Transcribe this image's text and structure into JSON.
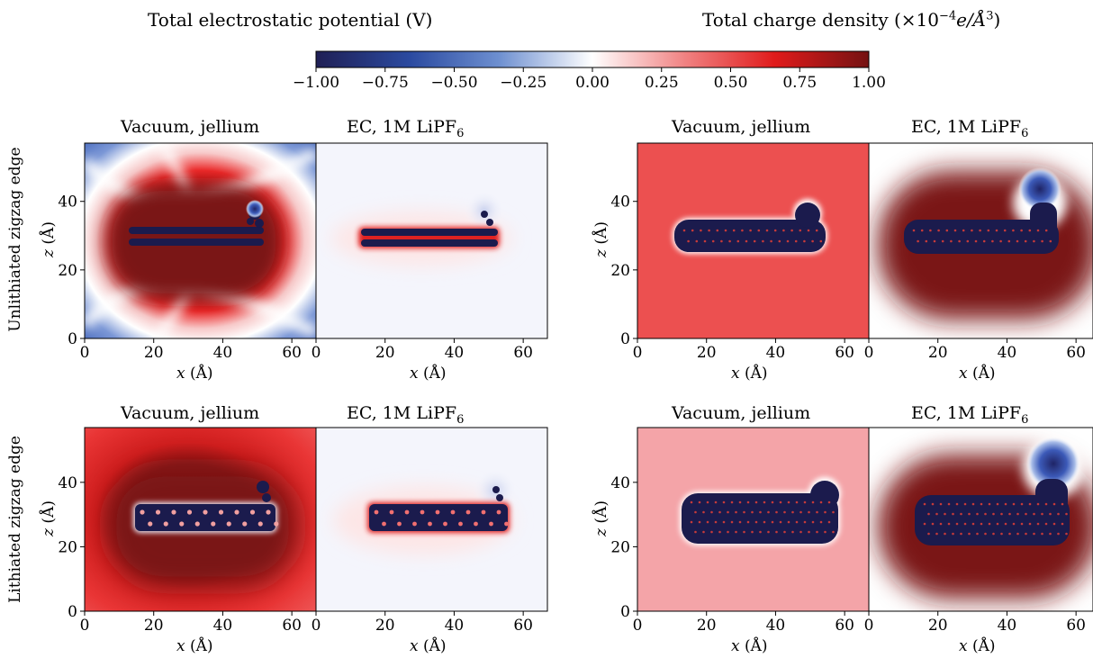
{
  "header": {
    "left_title": "Total electrostatic potential (V)",
    "right_title_prefix": "Total charge density (×10",
    "right_title_exp": "−4",
    "right_title_unit": "e/Å",
    "right_title_pow": "3",
    "right_title_suffix": ")"
  },
  "colorbar": {
    "ticks": [
      "−1.00",
      "−0.75",
      "−0.50",
      "−0.25",
      "0.00",
      "0.25",
      "0.50",
      "0.75",
      "1.00"
    ],
    "colors": [
      "#23235e",
      "#2f4ca8",
      "#7fa0d8",
      "#ffffff",
      "#f07a7a",
      "#e01d1d",
      "#741212"
    ]
  },
  "row_labels": [
    "Unlithiated zigzag edge",
    "Lithiated zigzag edge"
  ],
  "panel_titles": {
    "vacuum": "Vacuum, jellium",
    "ec_prefix": "EC, 1M LiPF",
    "ec_sub": "6"
  },
  "axes": {
    "xlabel_var": "x",
    "xlabel_unit": "(Å)",
    "ylabel_var": "z",
    "ylabel_unit": "(Å)",
    "x_ticks": [
      "0",
      "20",
      "40",
      "60"
    ],
    "y_ticks": [
      "0",
      "20",
      "40"
    ]
  },
  "chart_data": {
    "type": "heatmap",
    "colorbar_range": [
      -1.0,
      1.0
    ],
    "xlim": [
      0,
      67
    ],
    "ylim": [
      0,
      57
    ],
    "panels": [
      {
        "row": "Unlithiated zigzag edge",
        "quantity": "Total electrostatic potential (V)",
        "title": "Vacuum, jellium",
        "background_value": -0.6
      },
      {
        "row": "Unlithiated zigzag edge",
        "quantity": "Total electrostatic potential (V)",
        "title": "EC, 1M LiPF6",
        "background_value": -0.03
      },
      {
        "row": "Unlithiated zigzag edge",
        "quantity": "Total charge density",
        "title": "Vacuum, jellium",
        "background_value": 0.6
      },
      {
        "row": "Unlithiated zigzag edge",
        "quantity": "Total charge density",
        "title": "EC, 1M LiPF6",
        "background_value": 0.0
      },
      {
        "row": "Lithiated zigzag edge",
        "quantity": "Total electrostatic potential (V)",
        "title": "Vacuum, jellium",
        "background_value": 0.55
      },
      {
        "row": "Lithiated zigzag edge",
        "quantity": "Total electrostatic potential (V)",
        "title": "EC, 1M LiPF6",
        "background_value": -0.03
      },
      {
        "row": "Lithiated zigzag edge",
        "quantity": "Total charge density",
        "title": "Vacuum, jellium",
        "background_value": 0.35
      },
      {
        "row": "Lithiated zigzag edge",
        "quantity": "Total charge density",
        "title": "EC, 1M LiPF6",
        "background_value": 0.0
      }
    ]
  }
}
